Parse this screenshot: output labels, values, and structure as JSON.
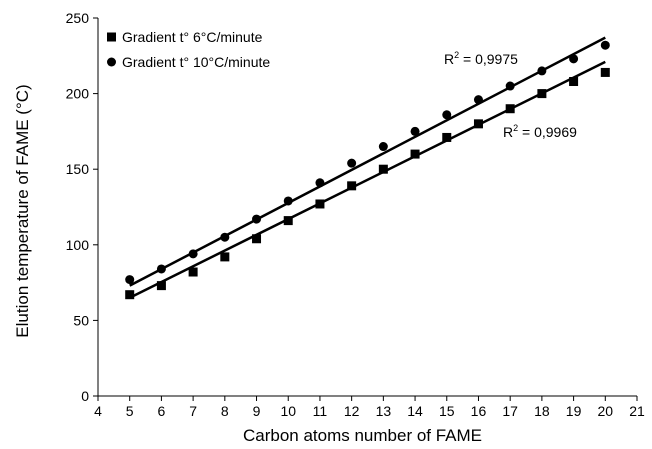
{
  "chart_data": {
    "type": "scatter",
    "xlabel": "Carbon atoms number of FAME",
    "ylabel": "Elution temperature of FAME (°C)",
    "xlim": [
      4,
      21
    ],
    "ylim": [
      0,
      250
    ],
    "xticks": [
      "4",
      "5",
      "6",
      "7",
      "8",
      "9",
      "10",
      "11",
      "12",
      "13",
      "14",
      "15",
      "16",
      "17",
      "18",
      "19",
      "20",
      "21"
    ],
    "yticks": [
      "0",
      "50",
      "100",
      "150",
      "200",
      "250"
    ],
    "grid": false,
    "legend_position": "top-left",
    "series": [
      {
        "name": "Gradient t° 6°C/minute",
        "marker": "square",
        "color": "#000000",
        "x": [
          5,
          6,
          7,
          8,
          9,
          10,
          11,
          12,
          13,
          14,
          15,
          16,
          17,
          18,
          19,
          20
        ],
        "y": [
          67,
          73,
          82,
          92,
          104,
          116,
          127,
          139,
          150,
          160,
          171,
          180,
          190,
          200,
          208,
          214
        ],
        "trendline": {
          "x": [
            5,
            20
          ],
          "y": [
            65,
            221
          ]
        },
        "r2_label": "R",
        "r2_sup": "2",
        "r2_value": " = 0,9969"
      },
      {
        "name": "Gradient t° 10°C/minute",
        "marker": "circle",
        "color": "#000000",
        "x": [
          5,
          6,
          7,
          8,
          9,
          10,
          11,
          12,
          13,
          14,
          15,
          16,
          17,
          18,
          19,
          20
        ],
        "y": [
          77,
          84,
          94,
          105,
          117,
          129,
          141,
          154,
          165,
          175,
          186,
          196,
          205,
          215,
          223,
          232
        ],
        "trendline": {
          "x": [
            5,
            20
          ],
          "y": [
            73,
            237
          ]
        },
        "r2_label": "R",
        "r2_sup": "2",
        "r2_value": " = 0,9975"
      }
    ]
  }
}
